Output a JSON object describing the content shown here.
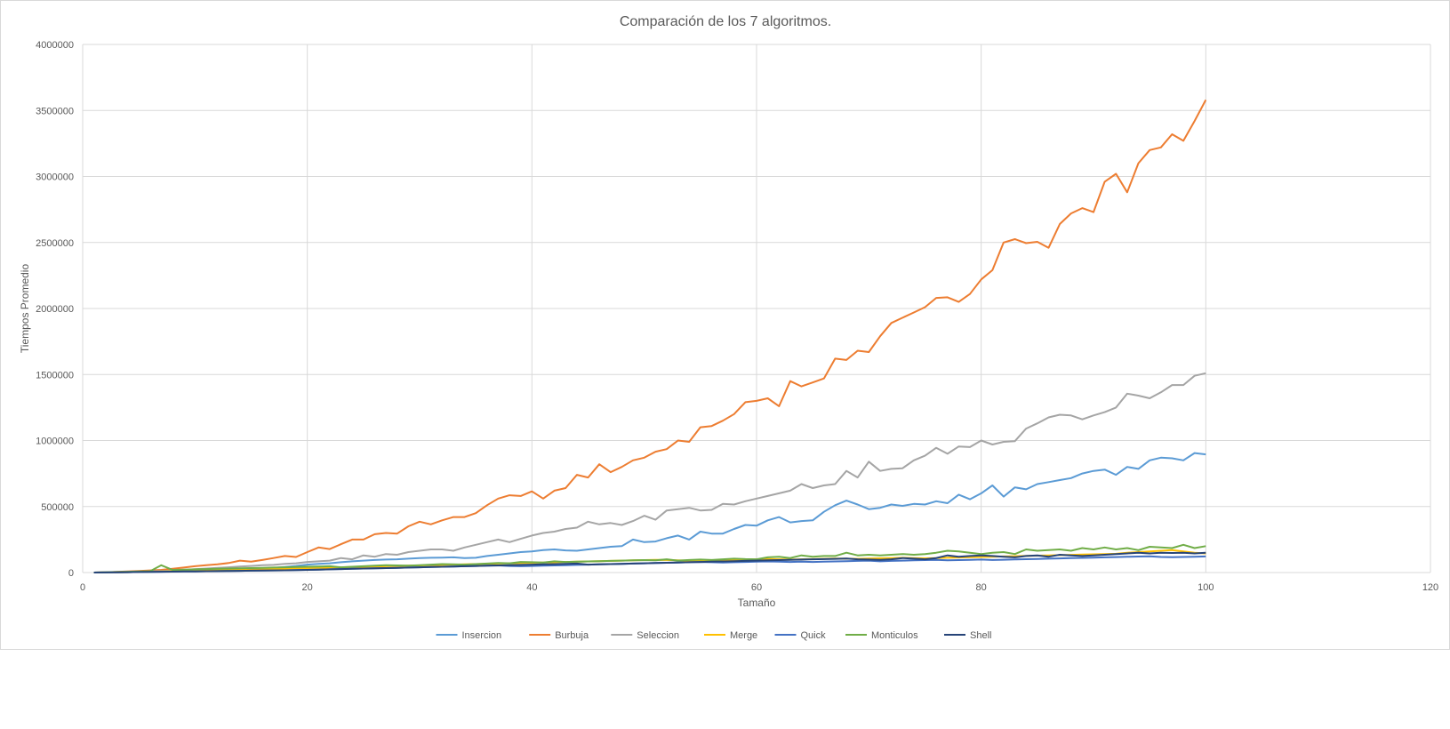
{
  "chart_data": {
    "type": "line",
    "title": "Comparación de los 7 algoritmos.",
    "xlabel": "Tamaño",
    "ylabel": "Tiempos Promedio",
    "xlim": [
      0,
      120
    ],
    "ylim": [
      0,
      4000000
    ],
    "x_ticks": [
      "0",
      "20",
      "40",
      "60",
      "80",
      "100",
      "120"
    ],
    "y_ticks": [
      "0",
      "500000",
      "1000000",
      "1500000",
      "2000000",
      "2500000",
      "3000000",
      "3500000",
      "4000000"
    ],
    "grid": true,
    "legend_position": "bottom",
    "x": [
      1,
      2,
      3,
      4,
      5,
      6,
      7,
      8,
      9,
      10,
      11,
      12,
      13,
      14,
      15,
      16,
      17,
      18,
      19,
      20,
      21,
      22,
      23,
      24,
      25,
      26,
      27,
      28,
      29,
      30,
      31,
      32,
      33,
      34,
      35,
      36,
      37,
      38,
      39,
      40,
      41,
      42,
      43,
      44,
      45,
      46,
      47,
      48,
      49,
      50,
      51,
      52,
      53,
      54,
      55,
      56,
      57,
      58,
      59,
      60,
      61,
      62,
      63,
      64,
      65,
      66,
      67,
      68,
      69,
      70,
      71,
      72,
      73,
      74,
      75,
      76,
      77,
      78,
      79,
      80,
      81,
      82,
      83,
      84,
      85,
      86,
      87,
      88,
      89,
      90,
      91,
      92,
      93,
      94,
      95,
      96,
      97,
      98,
      99,
      100
    ],
    "series": [
      {
        "name": "Insercion",
        "color": "#5b9bd5",
        "values": [
          0,
          1000,
          2000,
          3000,
          4000,
          5000,
          6000,
          8000,
          10000,
          12000,
          14000,
          17000,
          20000,
          23000,
          27000,
          31000,
          36000,
          42000,
          50000,
          60000,
          65000,
          70000,
          78000,
          85000,
          90000,
          95000,
          98000,
          100000,
          105000,
          110000,
          112000,
          113000,
          115000,
          110000,
          112000,
          125000,
          135000,
          145000,
          155000,
          160000,
          170000,
          175000,
          168000,
          165000,
          175000,
          185000,
          195000,
          200000,
          250000,
          230000,
          235000,
          260000,
          280000,
          250000,
          310000,
          295000,
          295000,
          330000,
          360000,
          355000,
          395000,
          420000,
          380000,
          390000,
          395000,
          460000,
          510000,
          545000,
          515000,
          480000,
          490000,
          515000,
          505000,
          520000,
          515000,
          540000,
          525000,
          590000,
          555000,
          600000,
          660000,
          575000,
          645000,
          630000,
          670000,
          685000,
          700000,
          715000,
          750000,
          770000,
          780000,
          740000,
          800000,
          785000,
          850000,
          870000,
          865000,
          850000,
          905000,
          895000
        ]
      },
      {
        "name": "Burbuja",
        "color": "#ed7d31",
        "values": [
          0,
          2000,
          5000,
          8000,
          12000,
          16000,
          20000,
          28000,
          38000,
          48000,
          55000,
          62000,
          72000,
          90000,
          82000,
          95000,
          110000,
          125000,
          118000,
          155000,
          190000,
          178000,
          215000,
          250000,
          250000,
          290000,
          300000,
          295000,
          350000,
          385000,
          365000,
          395000,
          420000,
          420000,
          450000,
          510000,
          560000,
          585000,
          580000,
          615000,
          560000,
          620000,
          640000,
          740000,
          720000,
          820000,
          760000,
          800000,
          850000,
          870000,
          915000,
          935000,
          1000000,
          990000,
          1100000,
          1110000,
          1150000,
          1200000,
          1290000,
          1300000,
          1320000,
          1260000,
          1450000,
          1410000,
          1440000,
          1470000,
          1620000,
          1610000,
          1680000,
          1670000,
          1790000,
          1890000,
          1930000,
          1970000,
          2010000,
          2080000,
          2085000,
          2050000,
          2110000,
          2220000,
          2290000,
          2500000,
          2525000,
          2495000,
          2505000,
          2460000,
          2640000,
          2720000,
          2760000,
          2730000,
          2960000,
          3020000,
          2880000,
          3100000,
          3200000,
          3220000,
          3320000,
          3270000,
          3420000,
          3580000
        ]
      },
      {
        "name": "Seleccion",
        "color": "#a5a5a5",
        "values": [
          0,
          1000,
          2000,
          4000,
          6000,
          8000,
          12000,
          15000,
          20000,
          25000,
          30000,
          35000,
          40000,
          45000,
          50000,
          55000,
          58000,
          65000,
          70000,
          80000,
          85000,
          90000,
          110000,
          100000,
          130000,
          120000,
          140000,
          135000,
          155000,
          165000,
          175000,
          175000,
          165000,
          190000,
          210000,
          230000,
          250000,
          230000,
          255000,
          280000,
          300000,
          310000,
          330000,
          340000,
          385000,
          365000,
          375000,
          360000,
          390000,
          430000,
          400000,
          470000,
          480000,
          490000,
          470000,
          475000,
          520000,
          515000,
          540000,
          560000,
          580000,
          600000,
          620000,
          670000,
          640000,
          660000,
          670000,
          770000,
          720000,
          840000,
          770000,
          785000,
          790000,
          850000,
          885000,
          945000,
          900000,
          955000,
          950000,
          1000000,
          970000,
          990000,
          995000,
          1090000,
          1130000,
          1175000,
          1195000,
          1190000,
          1160000,
          1190000,
          1215000,
          1250000,
          1355000,
          1340000,
          1320000,
          1365000,
          1420000,
          1420000,
          1490000,
          1510000
        ]
      },
      {
        "name": "Merge",
        "color": "#ffc000",
        "values": [
          0,
          1000,
          2000,
          3000,
          5000,
          6000,
          8000,
          10000,
          12000,
          14000,
          16000,
          18000,
          20000,
          22000,
          24000,
          26000,
          28000,
          30000,
          32000,
          34000,
          36000,
          38000,
          40000,
          42000,
          44000,
          46000,
          48000,
          50000,
          52000,
          54000,
          56000,
          58000,
          60000,
          62000,
          64000,
          66000,
          68000,
          70000,
          72000,
          74000,
          76000,
          78000,
          80000,
          82000,
          84000,
          86000,
          88000,
          90000,
          92000,
          94000,
          96000,
          95000,
          92000,
          90000,
          88000,
          90000,
          92000,
          95000,
          98000,
          100000,
          102000,
          100000,
          98000,
          100000,
          102000,
          104000,
          106000,
          105000,
          104000,
          106000,
          108000,
          110000,
          112000,
          110000,
          108000,
          110000,
          112000,
          114000,
          116000,
          118000,
          120000,
          122000,
          124000,
          126000,
          128000,
          130000,
          132000,
          134000,
          136000,
          138000,
          140000,
          142000,
          150000,
          155000,
          160000,
          165000,
          170000,
          160000,
          150000,
          145000
        ]
      },
      {
        "name": "Quick",
        "color": "#4472c4",
        "values": [
          0,
          1000,
          2000,
          3000,
          4000,
          5000,
          6000,
          7000,
          8000,
          9000,
          10000,
          11000,
          12000,
          13000,
          14000,
          15000,
          16000,
          17000,
          18000,
          20000,
          22000,
          24000,
          26000,
          28000,
          30000,
          32000,
          34000,
          36000,
          38000,
          40000,
          42000,
          44000,
          46000,
          48000,
          50000,
          52000,
          54000,
          50000,
          48000,
          50000,
          52000,
          54000,
          56000,
          58000,
          60000,
          62000,
          64000,
          66000,
          68000,
          70000,
          72000,
          74000,
          76000,
          78000,
          80000,
          78000,
          76000,
          78000,
          80000,
          82000,
          84000,
          82000,
          80000,
          82000,
          80000,
          82000,
          84000,
          86000,
          88000,
          90000,
          85000,
          88000,
          90000,
          92000,
          94000,
          96000,
          92000,
          94000,
          96000,
          98000,
          95000,
          97000,
          99000,
          101000,
          103000,
          105000,
          107000,
          109000,
          111000,
          113000,
          115000,
          117000,
          119000,
          121000,
          123000,
          118000,
          116000,
          118000,
          120000,
          122000
        ]
      },
      {
        "name": "Monticulos",
        "color": "#70ad47",
        "values": [
          0,
          2000,
          4000,
          6000,
          8000,
          10000,
          55000,
          20000,
          22000,
          24000,
          26000,
          28000,
          30000,
          32000,
          34000,
          36000,
          38000,
          40000,
          42000,
          44000,
          46000,
          48000,
          40000,
          44000,
          48000,
          52000,
          56000,
          54000,
          52000,
          56000,
          60000,
          64000,
          62000,
          60000,
          64000,
          68000,
          72000,
          70000,
          80000,
          78000,
          76000,
          85000,
          80000,
          82000,
          84000,
          86000,
          88000,
          90000,
          92000,
          94000,
          92000,
          100000,
          90000,
          95000,
          98000,
          95000,
          100000,
          105000,
          102000,
          100000,
          115000,
          120000,
          110000,
          130000,
          120000,
          125000,
          125000,
          150000,
          130000,
          135000,
          130000,
          135000,
          140000,
          135000,
          140000,
          150000,
          165000,
          160000,
          150000,
          140000,
          150000,
          155000,
          140000,
          175000,
          165000,
          170000,
          175000,
          165000,
          185000,
          175000,
          190000,
          175000,
          185000,
          170000,
          195000,
          190000,
          185000,
          210000,
          185000,
          200000
        ]
      },
      {
        "name": "Shell",
        "color": "#264478",
        "values": [
          0,
          1000,
          2000,
          3000,
          4000,
          5000,
          6000,
          7000,
          8000,
          9000,
          10000,
          11000,
          12000,
          13000,
          14000,
          15000,
          16000,
          17000,
          18000,
          20000,
          22000,
          24000,
          26000,
          28000,
          30000,
          32000,
          34000,
          36000,
          38000,
          40000,
          42000,
          44000,
          46000,
          48000,
          50000,
          52000,
          54000,
          56000,
          58000,
          60000,
          62000,
          64000,
          66000,
          68000,
          60000,
          62000,
          64000,
          66000,
          68000,
          70000,
          72000,
          74000,
          76000,
          78000,
          80000,
          82000,
          84000,
          86000,
          88000,
          90000,
          92000,
          94000,
          96000,
          98000,
          100000,
          102000,
          104000,
          106000,
          100000,
          98000,
          96000,
          100000,
          110000,
          105000,
          100000,
          110000,
          130000,
          120000,
          125000,
          130000,
          125000,
          120000,
          115000,
          125000,
          130000,
          120000,
          135000,
          130000,
          125000,
          130000,
          135000,
          140000,
          145000,
          150000,
          145000,
          150000,
          148000,
          150000,
          145000,
          150000
        ]
      }
    ]
  }
}
